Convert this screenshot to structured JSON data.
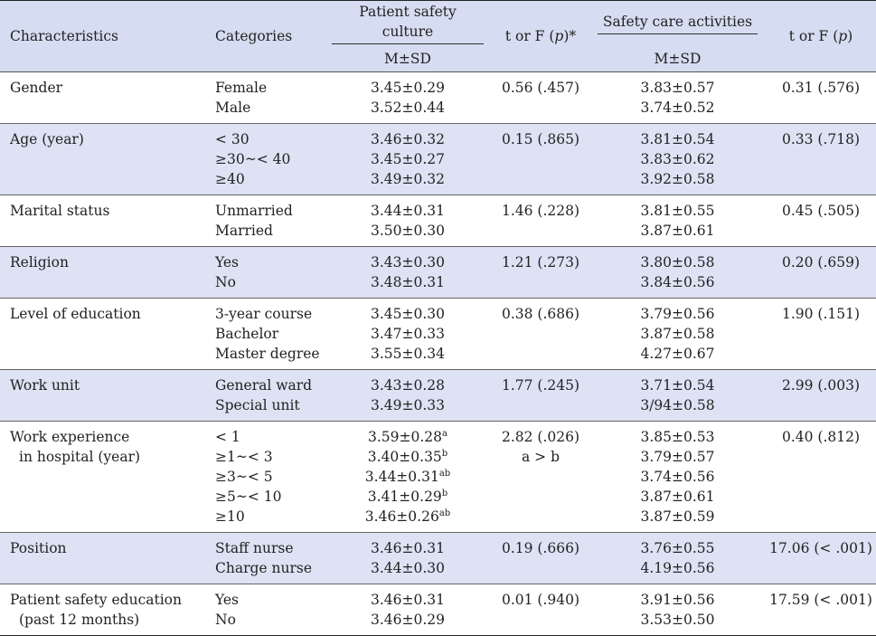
{
  "header": {
    "characteristics": "Characteristics",
    "categories": "Categories",
    "psc_title": "Patient safety culture",
    "psc_sub": "M±SD",
    "test1": "t or F (p)*",
    "sca_title": "Safety care activities",
    "sca_sub": "M±SD",
    "test2": "t or F (p)"
  },
  "rows": [
    {
      "char": [
        "Gender"
      ],
      "cats": [
        "Female",
        "Male"
      ],
      "psc": [
        {
          "v": "3.45±0.29",
          "s": ""
        },
        {
          "v": "3.52±0.44",
          "s": ""
        }
      ],
      "t1": [
        "0.56 (.457)"
      ],
      "sca": [
        "3.83±0.57",
        "3.74±0.52"
      ],
      "t2": [
        "0.31 (.576)"
      ],
      "shade": false
    },
    {
      "char": [
        "Age (year)"
      ],
      "cats": [
        "< 30",
        "≥30~< 40",
        "≥40"
      ],
      "psc": [
        {
          "v": "3.46±0.32",
          "s": ""
        },
        {
          "v": "3.45±0.27",
          "s": ""
        },
        {
          "v": "3.49±0.32",
          "s": ""
        }
      ],
      "t1": [
        "0.15 (.865)"
      ],
      "sca": [
        "3.81±0.54",
        "3.83±0.62",
        "3.92±0.58"
      ],
      "t2": [
        "0.33 (.718)"
      ],
      "shade": true
    },
    {
      "char": [
        "Marital status"
      ],
      "cats": [
        "Unmarried",
        "Married"
      ],
      "psc": [
        {
          "v": "3.44±0.31",
          "s": ""
        },
        {
          "v": "3.50±0.30",
          "s": ""
        }
      ],
      "t1": [
        "1.46 (.228)"
      ],
      "sca": [
        "3.81±0.55",
        "3.87±0.61"
      ],
      "t2": [
        "0.45 (.505)"
      ],
      "shade": false
    },
    {
      "char": [
        "Religion"
      ],
      "cats": [
        "Yes",
        "No"
      ],
      "psc": [
        {
          "v": "3.43±0.30",
          "s": ""
        },
        {
          "v": "3.48±0.31",
          "s": ""
        }
      ],
      "t1": [
        "1.21 (.273)"
      ],
      "sca": [
        "3.80±0.58",
        "3.84±0.56"
      ],
      "t2": [
        "0.20 (.659)"
      ],
      "shade": true
    },
    {
      "char": [
        "Level of education"
      ],
      "cats": [
        "3-year course",
        "Bachelor",
        "Master degree"
      ],
      "psc": [
        {
          "v": "3.45±0.30",
          "s": ""
        },
        {
          "v": "3.47±0.33",
          "s": ""
        },
        {
          "v": "3.55±0.34",
          "s": ""
        }
      ],
      "t1": [
        "0.38 (.686)"
      ],
      "sca": [
        "3.79±0.56",
        "3.87±0.58",
        "4.27±0.67"
      ],
      "t2": [
        "1.90 (.151)"
      ],
      "shade": false
    },
    {
      "char": [
        "Work unit"
      ],
      "cats": [
        "General ward",
        "Special unit"
      ],
      "psc": [
        {
          "v": "3.43±0.28",
          "s": ""
        },
        {
          "v": "3.49±0.33",
          "s": ""
        }
      ],
      "t1": [
        "1.77 (.245)"
      ],
      "sca": [
        "3.71±0.54",
        "3/94±0.58"
      ],
      "t2": [
        "2.99 (.003)"
      ],
      "shade": true
    },
    {
      "char": [
        "Work experience",
        "in hospital (year)"
      ],
      "cats": [
        "< 1",
        "≥1~< 3",
        "≥3~< 5",
        "≥5~< 10",
        "≥10"
      ],
      "psc": [
        {
          "v": "3.59±0.28",
          "s": "a"
        },
        {
          "v": "3.40±0.35",
          "s": "b"
        },
        {
          "v": "3.44±0.31",
          "s": "ab"
        },
        {
          "v": "3.41±0.29",
          "s": "b"
        },
        {
          "v": "3.46±0.26",
          "s": "ab"
        }
      ],
      "t1": [
        "2.82 (.026)",
        "a > b"
      ],
      "sca": [
        "3.85±0.53",
        "3.79±0.57",
        "3.74±0.56",
        "3.87±0.61",
        "3.87±0.59"
      ],
      "t2": [
        "0.40  (.812)"
      ],
      "shade": false
    },
    {
      "char": [
        "Position"
      ],
      "cats": [
        "Staff nurse",
        "Charge nurse"
      ],
      "psc": [
        {
          "v": "3.46±0.31",
          "s": ""
        },
        {
          "v": "3.44±0.30",
          "s": ""
        }
      ],
      "t1": [
        "0.19 (.666)"
      ],
      "sca": [
        "3.76±0.55",
        "4.19±0.56"
      ],
      "t2": [
        "17.06 (< .001)"
      ],
      "shade": true
    },
    {
      "char": [
        "Patient safety education",
        "(past 12 months)"
      ],
      "cats": [
        "Yes",
        "No"
      ],
      "psc": [
        {
          "v": "3.46±0.31",
          "s": ""
        },
        {
          "v": "3.46±0.29",
          "s": ""
        }
      ],
      "t1": [
        "0.01 (.940)"
      ],
      "sca": [
        "3.91±0.56",
        "3.53±0.50"
      ],
      "t2": [
        "17.59 (< .001)"
      ],
      "shade": false
    }
  ]
}
